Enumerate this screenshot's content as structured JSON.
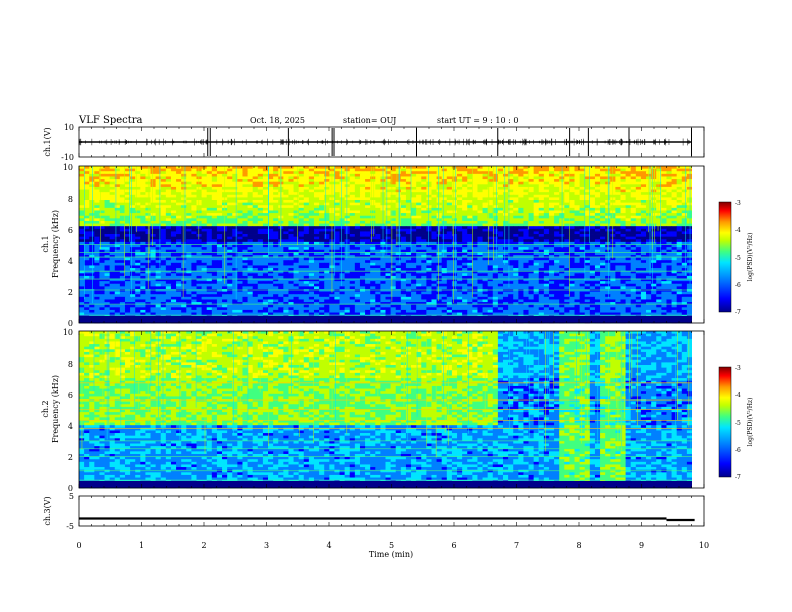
{
  "header": {
    "title": "VLF Spectra",
    "date": "Oct. 18, 2025",
    "station": "station= OUJ",
    "start": "start  UT  =   9 : 10 : 0"
  },
  "colorbar_label": "log(PSD)(V²/Hz)",
  "colors": {
    "background": "#ffffff",
    "colormap": [
      "#00008b",
      "#0000ff",
      "#0080ff",
      "#00e5ff",
      "#40ff80",
      "#c0ff00",
      "#ffff00",
      "#ff9900",
      "#ff0000",
      "#800000"
    ]
  },
  "chart_data": [
    {
      "type": "line",
      "name_panel": "ch1",
      "ylabel": "ch.1(V)",
      "xlim": [
        0,
        10
      ],
      "ylim": [
        -10,
        10
      ],
      "yticks": [
        "10",
        "-10"
      ],
      "baseline": 0,
      "spike_times_min": [
        2.06,
        2.1,
        3.35,
        4.05,
        4.08,
        5.4,
        6.7,
        7.85,
        8.15,
        8.8,
        9.8
      ]
    },
    {
      "type": "heatmap",
      "name_panel": "ch1-spectrogram",
      "label_top": "ch.1",
      "ylabel": "Frequency (kHz)",
      "xlim": [
        0,
        10
      ],
      "ylim": [
        0,
        10
      ],
      "yticks": [
        "0",
        "2",
        "4",
        "6",
        "8",
        "10"
      ],
      "colorbar": {
        "ticks": [
          "-3",
          "-4",
          "-5",
          "-6",
          "-7"
        ],
        "range": [
          -7,
          -3
        ]
      }
    },
    {
      "type": "heatmap",
      "name_panel": "ch2-spectrogram",
      "label_top": "ch.2",
      "ylabel": "Frequency (kHz)",
      "xlim": [
        0,
        10
      ],
      "ylim": [
        0,
        10
      ],
      "yticks": [
        "0",
        "2",
        "4",
        "6",
        "8",
        "10"
      ],
      "colorbar": {
        "ticks": [
          "-3",
          "-4",
          "-5",
          "-6",
          "-7"
        ],
        "range": [
          -7,
          -3
        ]
      }
    },
    {
      "type": "line",
      "name_panel": "ch3",
      "ylabel": "ch.3(V)",
      "xlim": [
        0,
        10
      ],
      "ylim": [
        -5,
        5
      ],
      "yticks": [
        "5",
        "-5"
      ],
      "segments": [
        {
          "x": [
            0.0,
            9.4
          ],
          "y": -2.5
        },
        {
          "x": [
            9.4,
            9.85
          ],
          "y": -3.0
        }
      ],
      "xlabel": "Time (min)",
      "xticks": [
        "0",
        "1",
        "2",
        "3",
        "4",
        "5",
        "6",
        "7",
        "8",
        "9",
        "10"
      ]
    }
  ]
}
